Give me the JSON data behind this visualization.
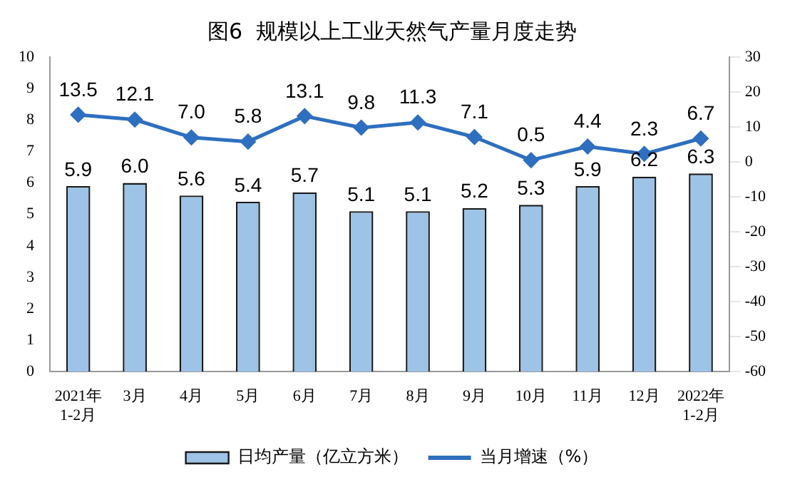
{
  "chart_data": {
    "type": "bar",
    "title": "图6  规模以上工业天然气产量月度走势",
    "categories": [
      "2021年\n1-2月",
      "3月",
      "4月",
      "5月",
      "6月",
      "7月",
      "8月",
      "9月",
      "10月",
      "11月",
      "12月",
      "2022年\n1-2月"
    ],
    "series": [
      {
        "name": "日均产量（亿立方米）",
        "color": "#9dc3e6",
        "values": [
          5.9,
          6.0,
          5.6,
          5.4,
          5.7,
          5.1,
          5.1,
          5.2,
          5.3,
          5.9,
          6.2,
          6.3
        ],
        "value_labels": [
          "5.9",
          "6.0",
          "5.6",
          "5.4",
          "5.7",
          "5.1",
          "5.1",
          "5.2",
          "5.3",
          "5.9",
          "6.2",
          "6.3"
        ]
      },
      {
        "name": "当月增速（%）",
        "type": "line",
        "axis": "y2",
        "color": "#2e6fbf",
        "values": [
          13.5,
          12.1,
          7.0,
          5.8,
          13.1,
          9.8,
          11.3,
          7.1,
          0.5,
          4.4,
          2.3,
          6.7
        ],
        "value_labels": [
          "13.5",
          "12.1",
          "7.0",
          "5.8",
          "13.1",
          "9.8",
          "11.3",
          "7.1",
          "0.5",
          "4.4",
          "2.3",
          "6.7"
        ]
      }
    ],
    "ylim": [
      0,
      10
    ],
    "yticks": [
      0,
      1,
      2,
      3,
      4,
      5,
      6,
      7,
      8,
      9,
      10
    ],
    "y2lim": [
      -60,
      30
    ],
    "y2ticks": [
      -60,
      -50,
      -40,
      -30,
      -20,
      -10,
      0,
      10,
      20,
      30
    ],
    "legend": "bottom",
    "grid": false,
    "marker": "diamond",
    "line_style": "solid"
  }
}
